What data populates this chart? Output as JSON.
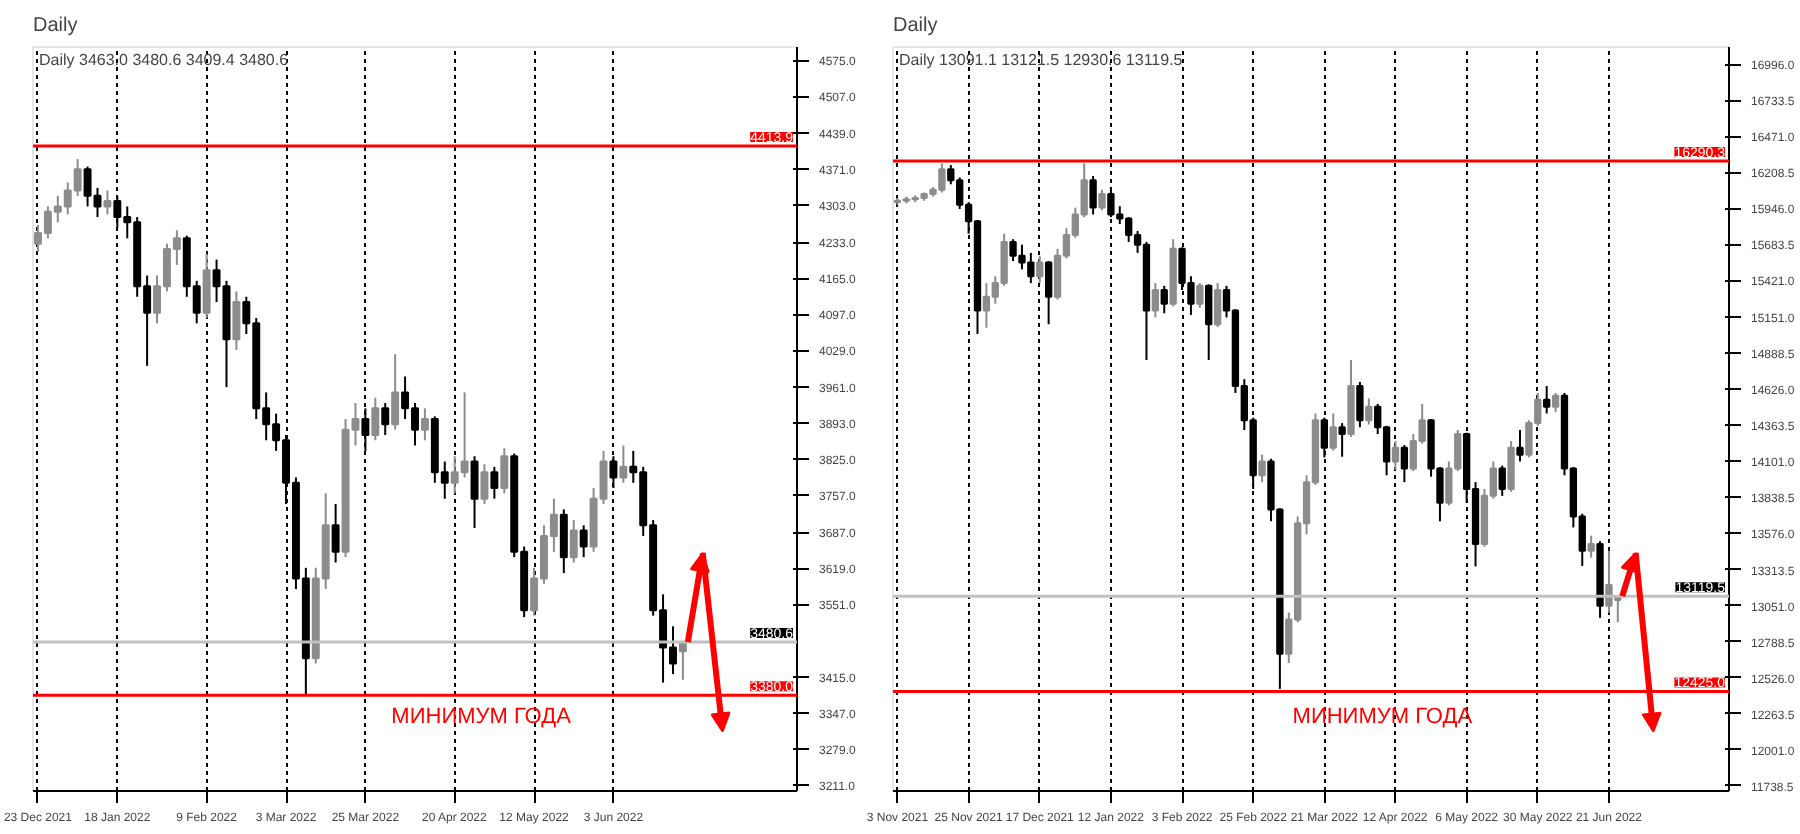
{
  "chart_data": [
    {
      "type": "candlestick",
      "title": "Daily",
      "subtitle": "Daily 3463.0 3480.6 3409.4 3480.6",
      "categories": [
        "23 Dec 2021",
        null,
        null,
        null,
        null,
        null,
        null,
        null,
        "18 Jan 2022",
        null,
        null,
        null,
        null,
        null,
        null,
        null,
        null,
        "9 Feb 2022",
        null,
        null,
        null,
        null,
        null,
        null,
        null,
        "3 Mar 2022",
        null,
        null,
        null,
        null,
        null,
        null,
        null,
        "25 Mar 2022",
        null,
        null,
        null,
        null,
        null,
        null,
        null,
        null,
        "20 Apr 2022",
        null,
        null,
        null,
        null,
        null,
        null,
        null,
        "12 May 2022",
        null,
        null,
        null,
        null,
        null,
        null,
        null,
        "3 Jun 2022",
        null,
        null,
        null,
        null,
        null,
        null,
        null,
        null,
        null,
        null,
        null,
        null,
        null,
        null,
        null,
        null,
        null,
        null
      ],
      "ohlc": [
        [
          4230,
          4265,
          4215,
          4250
        ],
        [
          4250,
          4300,
          4240,
          4290
        ],
        [
          4290,
          4320,
          4270,
          4300
        ],
        [
          4300,
          4345,
          4285,
          4330
        ],
        [
          4330,
          4389,
          4320,
          4370
        ],
        [
          4370,
          4375,
          4300,
          4320
        ],
        [
          4320,
          4335,
          4280,
          4300
        ],
        [
          4300,
          4330,
          4285,
          4310
        ],
        [
          4310,
          4320,
          4260,
          4280
        ],
        [
          4280,
          4300,
          4240,
          4270
        ],
        [
          4270,
          4280,
          4130,
          4150
        ],
        [
          4150,
          4170,
          4000,
          4100
        ],
        [
          4100,
          4170,
          4080,
          4150
        ],
        [
          4150,
          4230,
          4140,
          4220
        ],
        [
          4220,
          4255,
          4190,
          4240
        ],
        [
          4240,
          4245,
          4130,
          4150
        ],
        [
          4150,
          4160,
          4080,
          4100
        ],
        [
          4100,
          4211,
          4090,
          4180
        ],
        [
          4180,
          4200,
          4120,
          4150
        ],
        [
          4150,
          4160,
          3960,
          4050
        ],
        [
          4050,
          4140,
          4030,
          4120
        ],
        [
          4120,
          4130,
          4060,
          4080
        ],
        [
          4080,
          4090,
          3900,
          3920
        ],
        [
          3920,
          3950,
          3860,
          3890
        ],
        [
          3890,
          3910,
          3840,
          3860
        ],
        [
          3860,
          3870,
          3740,
          3780
        ],
        [
          3780,
          3790,
          3580,
          3600
        ],
        [
          3600,
          3620,
          3380,
          3450
        ],
        [
          3450,
          3620,
          3440,
          3600
        ],
        [
          3600,
          3760,
          3580,
          3700
        ],
        [
          3700,
          3740,
          3630,
          3650
        ],
        [
          3650,
          3900,
          3640,
          3880
        ],
        [
          3880,
          3930,
          3850,
          3900
        ],
        [
          3900,
          3920,
          3840,
          3870
        ],
        [
          3870,
          3940,
          3860,
          3920
        ],
        [
          3920,
          3930,
          3870,
          3890
        ],
        [
          3890,
          4022,
          3880,
          3950
        ],
        [
          3950,
          3980,
          3900,
          3920
        ],
        [
          3920,
          3930,
          3850,
          3880
        ],
        [
          3880,
          3920,
          3860,
          3900
        ],
        [
          3900,
          3905,
          3780,
          3800
        ],
        [
          3800,
          3820,
          3750,
          3780
        ],
        [
          3780,
          3830,
          3760,
          3800
        ],
        [
          3800,
          3950,
          3790,
          3820
        ],
        [
          3820,
          3830,
          3695,
          3750
        ],
        [
          3750,
          3815,
          3740,
          3800
        ],
        [
          3800,
          3810,
          3750,
          3770
        ],
        [
          3770,
          3845,
          3760,
          3830
        ],
        [
          3830,
          3835,
          3640,
          3650
        ],
        [
          3650,
          3660,
          3527,
          3540
        ],
        [
          3540,
          3620,
          3530,
          3600
        ],
        [
          3600,
          3700,
          3590,
          3680
        ],
        [
          3680,
          3750,
          3650,
          3720
        ],
        [
          3720,
          3730,
          3610,
          3640
        ],
        [
          3640,
          3710,
          3630,
          3690
        ],
        [
          3690,
          3700,
          3640,
          3660
        ],
        [
          3660,
          3770,
          3650,
          3750
        ],
        [
          3750,
          3840,
          3740,
          3820
        ],
        [
          3820,
          3830,
          3770,
          3790
        ],
        [
          3790,
          3850,
          3780,
          3810
        ],
        [
          3810,
          3840,
          3780,
          3800
        ],
        [
          3800,
          3810,
          3680,
          3700
        ],
        [
          3700,
          3710,
          3530,
          3540
        ],
        [
          3540,
          3570,
          3404,
          3470
        ],
        [
          3470,
          3510,
          3420,
          3440
        ],
        [
          3463.0,
          3480.6,
          3409.4,
          3480.6
        ],
        null,
        null,
        null,
        null,
        null,
        null,
        null,
        null,
        null,
        null,
        null
      ],
      "ylim": [
        3200,
        4600
      ],
      "yticks": [
        {
          "value": 3211,
          "label": "3211.0"
        },
        {
          "value": 3279,
          "label": "3279.0"
        },
        {
          "value": 3347,
          "label": "3347.0"
        },
        {
          "value": 3415,
          "label": "3415.0"
        },
        {
          "value": 3551,
          "label": "3551.0"
        },
        {
          "value": 3619,
          "label": "3619.0"
        },
        {
          "value": 3687,
          "label": "3687.0"
        },
        {
          "value": 3757,
          "label": "3757.0"
        },
        {
          "value": 3825,
          "label": "3825.0"
        },
        {
          "value": 3893,
          "label": "3893.0"
        },
        {
          "value": 3961,
          "label": "3961.0"
        },
        {
          "value": 4029,
          "label": "4029.0"
        },
        {
          "value": 4097,
          "label": "4097.0"
        },
        {
          "value": 4165,
          "label": "4165.0"
        },
        {
          "value": 4233,
          "label": "4233.0"
        },
        {
          "value": 4303,
          "label": "4303.0"
        },
        {
          "value": 4371,
          "label": "4371.0"
        },
        {
          "value": 4439,
          "label": "4439.0"
        },
        {
          "value": 4507,
          "label": "4507.0"
        },
        {
          "value": 4575,
          "label": "4575.0"
        }
      ],
      "ref_lines": [
        {
          "axis": "y",
          "value": 4413.9,
          "label": "4413.9",
          "color": "#ff0000"
        },
        {
          "axis": "y",
          "value": 3380.0,
          "label": "3380.0",
          "color": "#ff0000"
        },
        {
          "axis": "y",
          "value": 3480.6,
          "label": "3480.6",
          "color": "#c0c0c0"
        }
      ],
      "annotations": [
        "МИНИМУМ ГОДА"
      ],
      "grid": "x"
    },
    {
      "type": "candlestick",
      "title": "Daily",
      "subtitle": "Daily 13091.1 13121.5 12930.6 13119.5",
      "categories": [
        "3 Nov 2021",
        null,
        null,
        null,
        null,
        null,
        null,
        null,
        "25 Nov 2021",
        null,
        null,
        null,
        null,
        null,
        null,
        null,
        "17 Dec 2021",
        null,
        null,
        null,
        null,
        null,
        null,
        null,
        "12 Jan 2022",
        null,
        null,
        null,
        null,
        null,
        null,
        null,
        "3 Feb 2022",
        null,
        null,
        null,
        null,
        null,
        null,
        null,
        "25 Feb 2022",
        null,
        null,
        null,
        null,
        null,
        null,
        null,
        "21 Mar 2022",
        null,
        null,
        null,
        null,
        null,
        null,
        null,
        "12 Apr 2022",
        null,
        null,
        null,
        null,
        null,
        null,
        null,
        "6 May 2022",
        null,
        null,
        null,
        null,
        null,
        null,
        null,
        "30 May 2022",
        null,
        null,
        null,
        null,
        null,
        null,
        null,
        "21 Jun 2022",
        null,
        null,
        null,
        null,
        null,
        null,
        null,
        null,
        null,
        null,
        null,
        null,
        null
      ],
      "ohlc": [
        [
          15990,
          16020,
          15970,
          16000
        ],
        [
          16000,
          16030,
          15980,
          16010
        ],
        [
          16010,
          16040,
          15990,
          16020
        ],
        [
          16020,
          16060,
          16000,
          16050
        ],
        [
          16050,
          16100,
          16030,
          16080
        ],
        [
          16080,
          16272,
          16060,
          16230
        ],
        [
          16230,
          16260,
          16120,
          16150
        ],
        [
          16150,
          16170,
          15940,
          15970
        ],
        [
          15970,
          15990,
          15760,
          15850
        ],
        [
          15850,
          15860,
          15030,
          15200
        ],
        [
          15200,
          15400,
          15075,
          15300
        ],
        [
          15300,
          15450,
          15250,
          15400
        ],
        [
          15400,
          15760,
          15380,
          15700
        ],
        [
          15700,
          15720,
          15560,
          15600
        ],
        [
          15600,
          15680,
          15500,
          15550
        ],
        [
          15550,
          15620,
          15400,
          15450
        ],
        [
          15450,
          15600,
          15400,
          15550
        ],
        [
          15550,
          15560,
          15100,
          15300
        ],
        [
          15300,
          15650,
          15280,
          15600
        ],
        [
          15600,
          15800,
          15580,
          15750
        ],
        [
          15750,
          15950,
          15730,
          15900
        ],
        [
          15900,
          16272,
          15880,
          16150
        ],
        [
          16150,
          16180,
          15900,
          15950
        ],
        [
          15950,
          16080,
          15930,
          16050
        ],
        [
          16050,
          16100,
          15880,
          15900
        ],
        [
          15900,
          15960,
          15830,
          15870
        ],
        [
          15870,
          15880,
          15700,
          15750
        ],
        [
          15750,
          15780,
          15620,
          15680
        ],
        [
          15680,
          15700,
          14840,
          15200
        ],
        [
          15200,
          15400,
          15150,
          15350
        ],
        [
          15350,
          15380,
          15180,
          15250
        ],
        [
          15250,
          15720,
          15230,
          15650
        ],
        [
          15650,
          15660,
          15350,
          15400
        ],
        [
          15400,
          15450,
          15168,
          15250
        ],
        [
          15250,
          15400,
          15220,
          15380
        ],
        [
          15380,
          15390,
          14840,
          15100
        ],
        [
          15100,
          15400,
          15080,
          15350
        ],
        [
          15350,
          15380,
          15150,
          15200
        ],
        [
          15200,
          15210,
          14600,
          14650
        ],
        [
          14650,
          14700,
          14330,
          14400
        ],
        [
          14400,
          14420,
          13900,
          14000
        ],
        [
          14000,
          14150,
          13950,
          14100
        ],
        [
          14100,
          14120,
          13665,
          13750
        ],
        [
          13750,
          13760,
          12444,
          12700
        ],
        [
          12700,
          13000,
          12632,
          12950
        ],
        [
          12950,
          13700,
          12930,
          13650
        ],
        [
          13650,
          14000,
          13570,
          13950
        ],
        [
          13950,
          14450,
          13930,
          14400
        ],
        [
          14400,
          14420,
          14130,
          14200
        ],
        [
          14200,
          14450,
          14180,
          14350
        ],
        [
          14350,
          14380,
          14135,
          14300
        ],
        [
          14300,
          14840,
          14280,
          14650
        ],
        [
          14650,
          14680,
          14350,
          14400
        ],
        [
          14400,
          14560,
          14370,
          14500
        ],
        [
          14500,
          14520,
          14300,
          14350
        ],
        [
          14350,
          14360,
          14000,
          14100
        ],
        [
          14100,
          14250,
          14040,
          14200
        ],
        [
          14200,
          14220,
          13950,
          14050
        ],
        [
          14050,
          14300,
          14030,
          14250
        ],
        [
          14250,
          14520,
          14230,
          14400
        ],
        [
          14400,
          14410,
          13990,
          14050
        ],
        [
          14050,
          14060,
          13665,
          13800
        ],
        [
          13800,
          14100,
          13780,
          14050
        ],
        [
          14050,
          14330,
          14030,
          14300
        ],
        [
          14300,
          14310,
          13800,
          13900
        ],
        [
          13900,
          13950,
          13336,
          13500
        ],
        [
          13500,
          13900,
          13480,
          13850
        ],
        [
          13850,
          14100,
          13830,
          14050
        ],
        [
          14050,
          14070,
          13850,
          13900
        ],
        [
          13900,
          14250,
          13880,
          14200
        ],
        [
          14200,
          14330,
          14100,
          14150
        ],
        [
          14150,
          14400,
          14130,
          14380
        ],
        [
          14380,
          14600,
          14360,
          14550
        ],
        [
          14550,
          14650,
          14450,
          14500
        ],
        [
          14500,
          14600,
          14460,
          14580
        ],
        [
          14580,
          14600,
          14000,
          14050
        ],
        [
          14050,
          14060,
          13620,
          13700
        ],
        [
          13700,
          13720,
          13340,
          13450
        ],
        [
          13450,
          13560,
          13400,
          13500
        ],
        [
          13500,
          13520,
          12961,
          13050
        ],
        [
          13050,
          13450,
          13000,
          13200
        ],
        [
          13091.1,
          13121.5,
          12930.6,
          13119.5
        ],
        null,
        null,
        null,
        null,
        null,
        null,
        null,
        null,
        null,
        null,
        null,
        null
      ],
      "ylim": [
        11700,
        17120
      ],
      "yticks": [
        {
          "value": 11738.5,
          "label": "11738.5"
        },
        {
          "value": 12001,
          "label": "12001.0"
        },
        {
          "value": 12263.5,
          "label": "12263.5"
        },
        {
          "value": 12526,
          "label": "12526.0"
        },
        {
          "value": 12788.5,
          "label": "12788.5"
        },
        {
          "value": 13051,
          "label": "13051.0"
        },
        {
          "value": 13313.5,
          "label": "13313.5"
        },
        {
          "value": 13576,
          "label": "13576.0"
        },
        {
          "value": 13838.5,
          "label": "13838.5"
        },
        {
          "value": 14101,
          "label": "14101.0"
        },
        {
          "value": 14363.5,
          "label": "14363.5"
        },
        {
          "value": 14626,
          "label": "14626.0"
        },
        {
          "value": 14888.5,
          "label": "14888.5"
        },
        {
          "value": 15151,
          "label": "15151.0"
        },
        {
          "value": 15421,
          "label": "15421.0"
        },
        {
          "value": 15683.5,
          "label": "15683.5"
        },
        {
          "value": 15946,
          "label": "15946.0"
        },
        {
          "value": 16208.5,
          "label": "16208.5"
        },
        {
          "value": 16471,
          "label": "16471.0"
        },
        {
          "value": 16733.5,
          "label": "16733.5"
        },
        {
          "value": 16996,
          "label": "16996.0"
        }
      ],
      "ref_lines": [
        {
          "axis": "y",
          "value": 16290.3,
          "label": "16290.3",
          "color": "#ff0000"
        },
        {
          "axis": "y",
          "value": 12425.0,
          "label": "12425.0",
          "color": "#ff0000"
        },
        {
          "axis": "y",
          "value": 13119.5,
          "label": "13119.5",
          "color": "#c0c0c0"
        }
      ],
      "annotations": [
        "МИНИМУМ ГОДА"
      ],
      "grid": "x"
    }
  ]
}
